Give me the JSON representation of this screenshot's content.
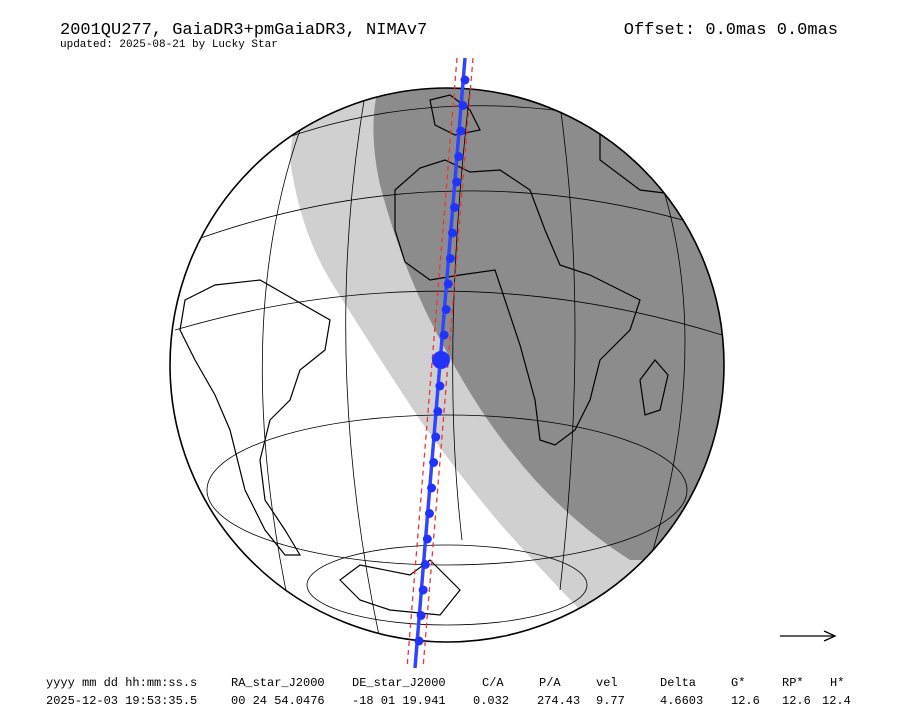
{
  "header": {
    "title": "2001QU277, GaiaDR3+pmGaiaDR3, NIMAv7",
    "subtitle": "updated: 2025-08-21 by Lucky Star",
    "offset": "Offset: 0.0mas 0.0mas"
  },
  "table": {
    "columns": [
      "yyyy mm dd hh:mm:ss.s",
      "RA_star_J2000",
      "DE_star_J2000",
      "C/A",
      "P/A",
      "vel",
      "Delta",
      "G*",
      "RP*",
      "H*"
    ],
    "rows": [
      [
        "2025-12-03 19:53:35.5",
        "00 24 54.0476",
        "-18 01 19.941",
        "0.032",
        "274.43",
        "9.77",
        "4.6603",
        "12.6",
        "12.6",
        "12.4"
      ]
    ]
  }
}
